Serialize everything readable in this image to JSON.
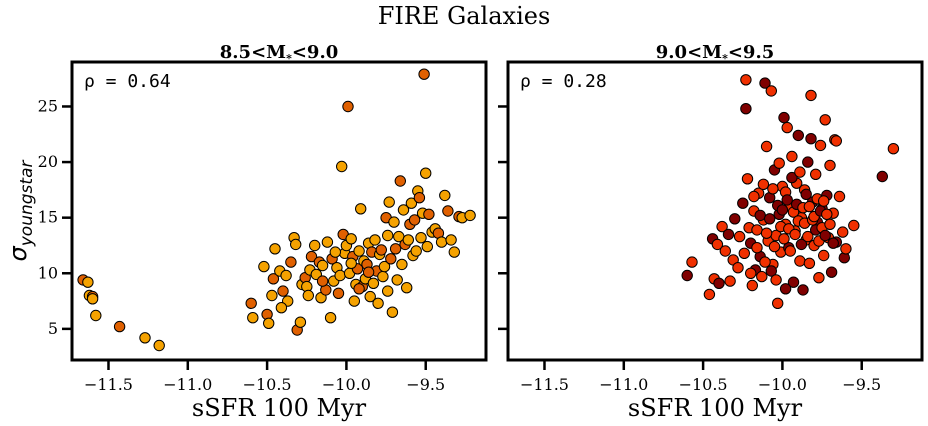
{
  "figure": {
    "title": "FIRE Galaxies",
    "ylabel_symbol": "σ",
    "ylabel_subscript": "youngstar"
  },
  "chart_data": [
    {
      "type": "scatter",
      "title_main": "8.5<M",
      "title_sub": "*",
      "title_rest": "<9.0",
      "xlabel": "sSFR 100 Myr",
      "ylabel": "σ youngstar",
      "annotation": "ρ = 0.64",
      "xlim": [
        -11.73,
        -9.12
      ],
      "ylim": [
        2.2,
        29.0
      ],
      "xticks": [
        -11.5,
        -11.0,
        -10.5,
        -10.0,
        -9.5
      ],
      "xtick_labels": [
        "−11.5",
        "−11.0",
        "−10.5",
        "−10.0",
        "−9.5"
      ],
      "yticks": [
        5,
        10,
        15,
        20,
        25
      ],
      "ytick_labels": [
        "5",
        "10",
        "15",
        "20",
        "25"
      ],
      "grid": false,
      "color_light": "#f5a200",
      "color_dark": "#e06000",
      "points": [
        [
          -11.66,
          9.4
        ],
        [
          -11.63,
          9.2
        ],
        [
          -11.62,
          8.0
        ],
        [
          -11.6,
          7.9
        ],
        [
          -11.6,
          7.7
        ],
        [
          -11.58,
          6.2
        ],
        [
          -11.43,
          5.2
        ],
        [
          -11.27,
          4.2
        ],
        [
          -11.18,
          3.5
        ],
        [
          -10.6,
          7.3
        ],
        [
          -10.59,
          6.0
        ],
        [
          -10.52,
          10.6
        ],
        [
          -10.5,
          6.3
        ],
        [
          -10.49,
          5.5
        ],
        [
          -10.47,
          8.0
        ],
        [
          -10.46,
          9.5
        ],
        [
          -10.45,
          12.2
        ],
        [
          -10.42,
          10.2
        ],
        [
          -10.4,
          8.4
        ],
        [
          -10.38,
          9.8
        ],
        [
          -10.37,
          7.5
        ],
        [
          -10.35,
          11.0
        ],
        [
          -10.33,
          13.2
        ],
        [
          -10.32,
          12.6
        ],
        [
          -10.31,
          4.9
        ],
        [
          -10.29,
          5.6
        ],
        [
          -10.28,
          9.0
        ],
        [
          -10.26,
          9.6
        ],
        [
          -10.25,
          8.8
        ],
        [
          -10.23,
          10.3
        ],
        [
          -10.22,
          11.5
        ],
        [
          -10.2,
          12.5
        ],
        [
          -10.19,
          9.9
        ],
        [
          -10.17,
          11.0
        ],
        [
          -10.16,
          7.8
        ],
        [
          -10.15,
          10.7
        ],
        [
          -10.13,
          8.5
        ],
        [
          -10.12,
          12.8
        ],
        [
          -10.1,
          6.0
        ],
        [
          -10.09,
          11.3
        ],
        [
          -10.08,
          9.3
        ],
        [
          -10.06,
          10.5
        ],
        [
          -10.05,
          8.2
        ],
        [
          -10.04,
          9.8
        ],
        [
          -10.03,
          19.6
        ],
        [
          -10.02,
          13.5
        ],
        [
          -10.01,
          11.8
        ],
        [
          -10.0,
          12.5
        ],
        [
          -9.99,
          25.0
        ],
        [
          -9.98,
          10.0
        ],
        [
          -9.97,
          13.1
        ],
        [
          -9.96,
          11.5
        ],
        [
          -9.95,
          7.5
        ],
        [
          -9.94,
          9.0
        ],
        [
          -9.93,
          10.4
        ],
        [
          -9.92,
          12.0
        ],
        [
          -9.91,
          15.8
        ],
        [
          -9.9,
          8.8
        ],
        [
          -9.89,
          11.1
        ],
        [
          -9.88,
          9.5
        ],
        [
          -9.87,
          10.8
        ],
        [
          -9.86,
          12.7
        ],
        [
          -9.85,
          7.9
        ],
        [
          -9.84,
          11.9
        ],
        [
          -9.83,
          9.1
        ],
        [
          -9.82,
          13.0
        ],
        [
          -9.81,
          10.2
        ],
        [
          -9.8,
          7.3
        ],
        [
          -9.79,
          11.7
        ],
        [
          -9.78,
          12.1
        ],
        [
          -9.77,
          9.7
        ],
        [
          -9.76,
          10.6
        ],
        [
          -9.75,
          15.0
        ],
        [
          -9.74,
          13.4
        ],
        [
          -9.73,
          16.4
        ],
        [
          -9.72,
          11.3
        ],
        [
          -9.71,
          6.5
        ],
        [
          -9.7,
          14.6
        ],
        [
          -9.69,
          12.2
        ],
        [
          -9.68,
          9.4
        ],
        [
          -9.67,
          13.3
        ],
        [
          -9.66,
          18.3
        ],
        [
          -9.65,
          10.8
        ],
        [
          -9.64,
          15.7
        ],
        [
          -9.63,
          12.6
        ],
        [
          -9.62,
          8.7
        ],
        [
          -9.61,
          13.0
        ],
        [
          -9.6,
          14.4
        ],
        [
          -9.59,
          16.3
        ],
        [
          -9.58,
          11.6
        ],
        [
          -9.57,
          14.8
        ],
        [
          -9.56,
          12.0
        ],
        [
          -9.55,
          17.4
        ],
        [
          -9.54,
          16.8
        ],
        [
          -9.53,
          13.2
        ],
        [
          -9.52,
          15.4
        ],
        [
          -9.51,
          27.9
        ],
        [
          -9.5,
          19.0
        ],
        [
          -9.49,
          12.4
        ],
        [
          -9.48,
          15.3
        ],
        [
          -9.46,
          13.7
        ],
        [
          -9.44,
          14.0
        ],
        [
          -9.42,
          13.6
        ],
        [
          -9.4,
          12.8
        ],
        [
          -9.38,
          17.0
        ],
        [
          -9.36,
          15.6
        ],
        [
          -9.34,
          13.0
        ],
        [
          -9.32,
          11.9
        ],
        [
          -9.29,
          15.1
        ],
        [
          -9.27,
          15.0
        ],
        [
          -9.22,
          15.2
        ],
        [
          -10.15,
          9.3
        ],
        [
          -10.07,
          11.9
        ],
        [
          -9.97,
          10.9
        ],
        [
          -9.92,
          8.6
        ],
        [
          -10.24,
          8.0
        ],
        [
          -10.41,
          6.9
        ],
        [
          -9.86,
          10.1
        ],
        [
          -9.74,
          8.4
        ]
      ]
    },
    {
      "type": "scatter",
      "title_main": "9.0<M",
      "title_sub": "*",
      "title_rest": "<9.5",
      "xlabel": "sSFR 100 Myr",
      "annotation": "ρ = 0.28",
      "xlim": [
        -11.73,
        -9.12
      ],
      "ylim": [
        2.2,
        29.0
      ],
      "xticks": [
        -11.5,
        -11.0,
        -10.5,
        -10.0,
        -9.5
      ],
      "xtick_labels": [
        "−11.5",
        "−11.0",
        "−10.5",
        "−10.0",
        "−9.5"
      ],
      "yticks": [
        5,
        10,
        15,
        20,
        25
      ],
      "grid": false,
      "color_light": "#f03000",
      "color_dark": "#800000",
      "points": [
        [
          -10.6,
          9.8
        ],
        [
          -10.57,
          11.0
        ],
        [
          -10.46,
          8.1
        ],
        [
          -10.44,
          13.1
        ],
        [
          -10.43,
          9.5
        ],
        [
          -10.41,
          12.6
        ],
        [
          -10.4,
          9.1
        ],
        [
          -10.38,
          14.2
        ],
        [
          -10.36,
          12.0
        ],
        [
          -10.34,
          13.5
        ],
        [
          -10.33,
          9.3
        ],
        [
          -10.31,
          11.2
        ],
        [
          -10.3,
          14.9
        ],
        [
          -10.28,
          10.5
        ],
        [
          -10.27,
          13.3
        ],
        [
          -10.25,
          16.3
        ],
        [
          -10.24,
          11.8
        ],
        [
          -10.23,
          27.4
        ],
        [
          -10.23,
          24.8
        ],
        [
          -10.22,
          18.5
        ],
        [
          -10.21,
          14.1
        ],
        [
          -10.2,
          12.7
        ],
        [
          -10.19,
          8.9
        ],
        [
          -10.18,
          15.6
        ],
        [
          -10.17,
          10.3
        ],
        [
          -10.16,
          13.9
        ],
        [
          -10.15,
          17.2
        ],
        [
          -10.14,
          11.5
        ],
        [
          -10.13,
          9.7
        ],
        [
          -10.12,
          14.8
        ],
        [
          -10.11,
          27.1
        ],
        [
          -10.1,
          21.4
        ],
        [
          -10.09,
          12.9
        ],
        [
          -10.08,
          16.8
        ],
        [
          -10.07,
          26.4
        ],
        [
          -10.06,
          10.8
        ],
        [
          -10.05,
          19.3
        ],
        [
          -10.04,
          13.4
        ],
        [
          -10.03,
          7.3
        ],
        [
          -10.02,
          15.3
        ],
        [
          -10.01,
          11.9
        ],
        [
          -10.0,
          17.8
        ],
        [
          -9.99,
          24.0
        ],
        [
          -9.98,
          14.4
        ],
        [
          -9.97,
          23.1
        ],
        [
          -9.96,
          12.3
        ],
        [
          -9.95,
          16.0
        ],
        [
          -9.94,
          20.5
        ],
        [
          -9.93,
          9.2
        ],
        [
          -9.92,
          13.8
        ],
        [
          -9.91,
          18.1
        ],
        [
          -9.9,
          22.4
        ],
        [
          -9.89,
          11.1
        ],
        [
          -9.88,
          15.0
        ],
        [
          -9.87,
          8.5
        ],
        [
          -9.86,
          17.5
        ],
        [
          -9.85,
          13.0
        ],
        [
          -9.84,
          20.0
        ],
        [
          -9.83,
          10.9
        ],
        [
          -9.82,
          26.0
        ],
        [
          -9.81,
          16.4
        ],
        [
          -9.8,
          12.5
        ],
        [
          -9.79,
          18.9
        ],
        [
          -9.78,
          14.6
        ],
        [
          -9.77,
          9.6
        ],
        [
          -9.76,
          21.5
        ],
        [
          -9.75,
          15.8
        ],
        [
          -9.74,
          11.6
        ],
        [
          -9.73,
          23.8
        ],
        [
          -9.72,
          17.0
        ],
        [
          -9.71,
          13.2
        ],
        [
          -9.7,
          19.7
        ],
        [
          -9.69,
          10.1
        ],
        [
          -9.68,
          15.4
        ],
        [
          -9.67,
          22.0
        ],
        [
          -9.66,
          12.8
        ],
        [
          -9.64,
          16.9
        ],
        [
          -9.62,
          13.7
        ],
        [
          -9.61,
          11.4
        ],
        [
          -9.6,
          12.2
        ],
        [
          -9.55,
          14.3
        ],
        [
          -9.37,
          18.7
        ],
        [
          -9.3,
          21.2
        ],
        [
          -10.18,
          16.9
        ],
        [
          -10.14,
          15.2
        ],
        [
          -10.12,
          18.0
        ],
        [
          -10.1,
          13.6
        ],
        [
          -10.08,
          14.9
        ],
        [
          -10.06,
          17.6
        ],
        [
          -10.05,
          12.4
        ],
        [
          -10.03,
          16.1
        ],
        [
          -10.02,
          19.9
        ],
        [
          -10.01,
          14.2
        ],
        [
          -10.0,
          15.7
        ],
        [
          -9.99,
          13.1
        ],
        [
          -9.98,
          17.3
        ],
        [
          -9.97,
          16.6
        ],
        [
          -9.96,
          14.0
        ],
        [
          -9.95,
          12.0
        ],
        [
          -9.94,
          18.6
        ],
        [
          -9.93,
          15.5
        ],
        [
          -9.92,
          13.5
        ],
        [
          -9.91,
          16.2
        ],
        [
          -9.9,
          14.7
        ],
        [
          -9.89,
          19.1
        ],
        [
          -9.88,
          12.6
        ],
        [
          -9.87,
          15.9
        ],
        [
          -9.86,
          14.5
        ],
        [
          -9.85,
          17.1
        ],
        [
          -9.84,
          13.3
        ],
        [
          -9.83,
          16.0
        ],
        [
          -9.82,
          22.1
        ],
        [
          -9.81,
          14.8
        ],
        [
          -9.8,
          15.1
        ],
        [
          -9.79,
          13.9
        ],
        [
          -9.78,
          16.7
        ],
        [
          -9.77,
          12.9
        ],
        [
          -9.76,
          15.6
        ],
        [
          -9.75,
          14.1
        ],
        [
          -9.74,
          16.5
        ],
        [
          -9.73,
          13.4
        ],
        [
          -9.72,
          15.3
        ],
        [
          -9.7,
          14.4
        ],
        [
          -9.68,
          12.7
        ],
        [
          -9.66,
          21.9
        ],
        [
          -10.11,
          11.0
        ],
        [
          -10.07,
          10.2
        ],
        [
          -10.04,
          9.4
        ],
        [
          -10.16,
          12.3
        ],
        [
          -9.98,
          8.6
        ],
        [
          -10.2,
          10.0
        ]
      ]
    }
  ]
}
